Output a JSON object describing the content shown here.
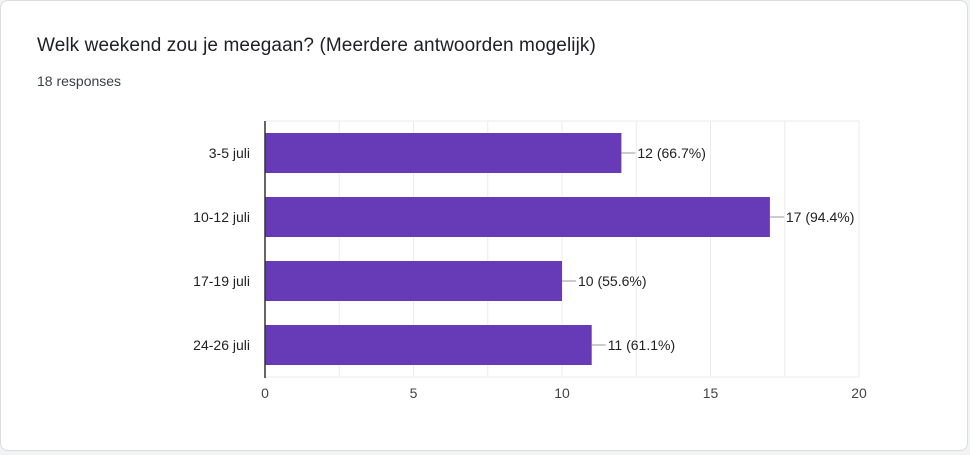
{
  "question": {
    "title": "Welk weekend zou je meegaan? (Meerdere antwoorden mogelijk)",
    "responses": "18 responses"
  },
  "colors": {
    "bar": "#673ab7",
    "grid": "#ebebeb",
    "axis": "#333333",
    "text": "#222222"
  },
  "chart_data": {
    "type": "bar",
    "orientation": "horizontal",
    "categories": [
      "3-5 juli",
      "10-12 juli",
      "17-19 juli",
      "24-26 juli"
    ],
    "values": [
      12,
      17,
      10,
      11
    ],
    "data_labels": [
      "12 (66.7%)",
      "17 (94.4%)",
      "10 (55.6%)",
      "11 (61.1%)"
    ],
    "xlim": [
      0,
      20
    ],
    "xticks": [
      0,
      5,
      10,
      15,
      20
    ],
    "grid": true
  }
}
